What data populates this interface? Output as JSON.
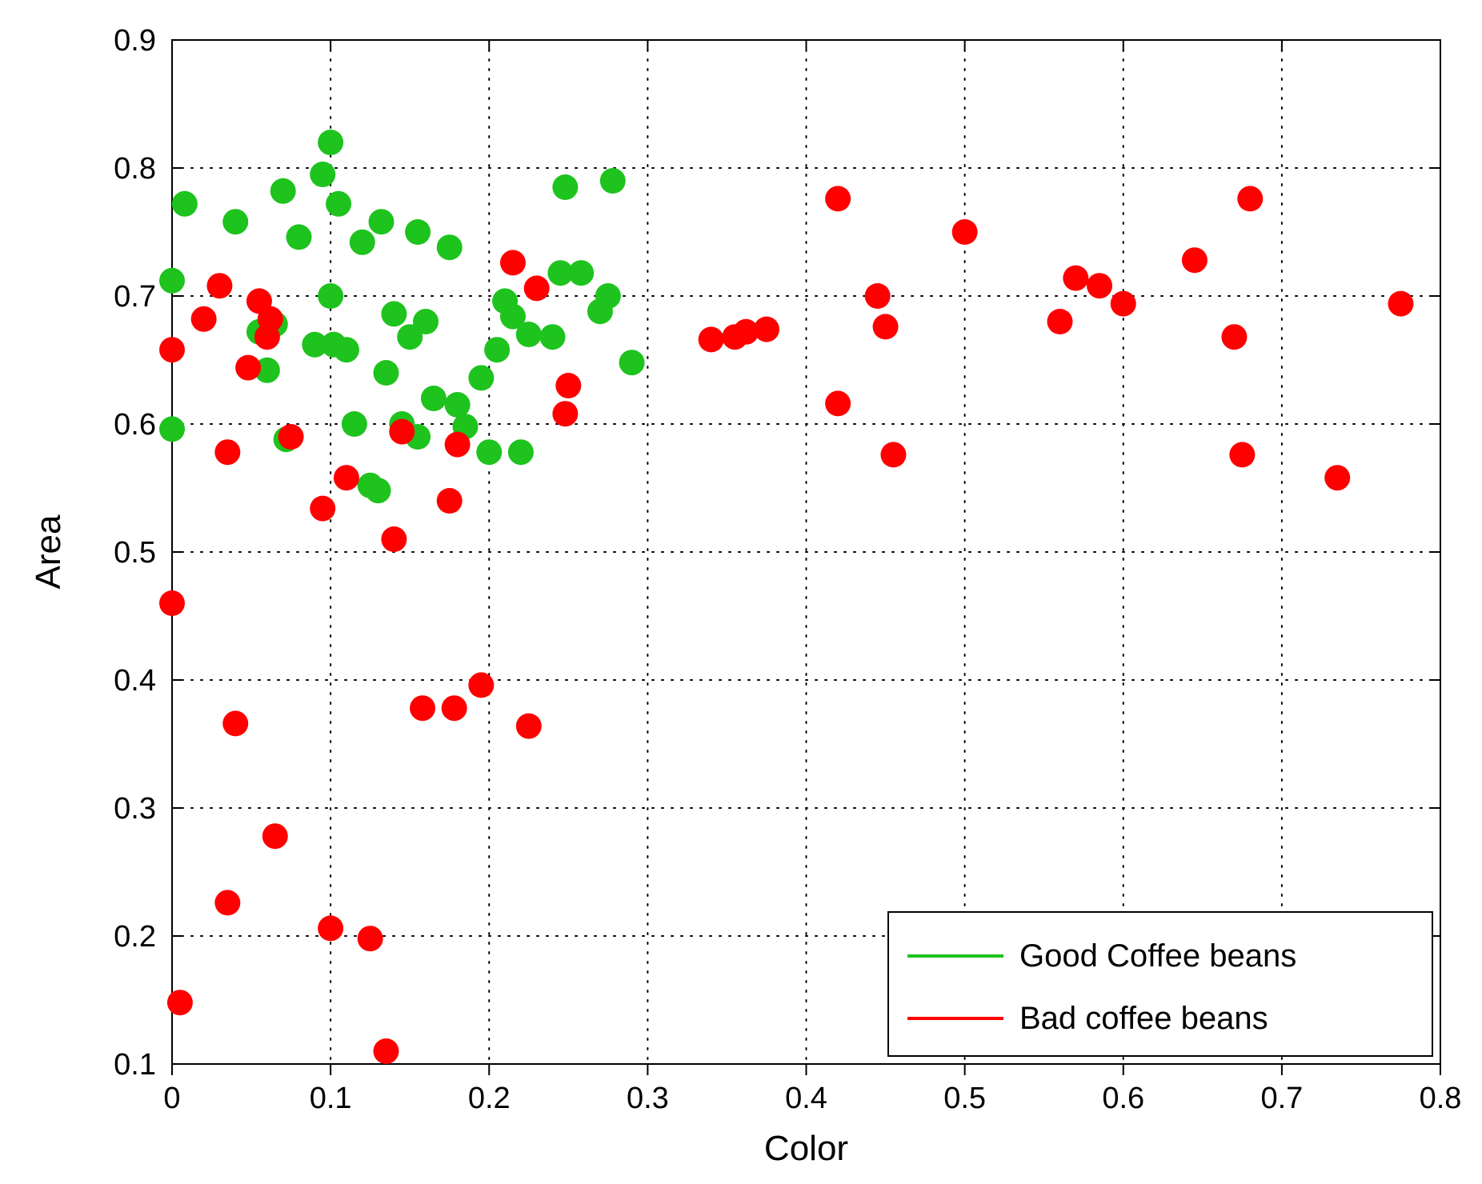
{
  "chart": {
    "type": "scatter",
    "background_color": "#ffffff",
    "plot_border_color": "#000000",
    "grid_color": "#000000",
    "grid_dash": "2 10",
    "marker_radius": 16,
    "x": {
      "label": "Color",
      "min": 0.0,
      "max": 0.8,
      "ticks": [
        0,
        0.1,
        0.2,
        0.3,
        0.4,
        0.5,
        0.6,
        0.7,
        0.8
      ]
    },
    "y": {
      "label": "Area",
      "min": 0.1,
      "max": 0.9,
      "ticks": [
        0.1,
        0.2,
        0.3,
        0.4,
        0.5,
        0.6,
        0.7,
        0.8,
        0.9
      ]
    },
    "series": [
      {
        "name": "Good Coffee beans",
        "color": "#1ec31e",
        "points": [
          [
            0.0,
            0.712
          ],
          [
            0.0,
            0.596
          ],
          [
            0.008,
            0.772
          ],
          [
            0.04,
            0.758
          ],
          [
            0.055,
            0.672
          ],
          [
            0.06,
            0.642
          ],
          [
            0.065,
            0.678
          ],
          [
            0.07,
            0.782
          ],
          [
            0.072,
            0.588
          ],
          [
            0.08,
            0.746
          ],
          [
            0.09,
            0.662
          ],
          [
            0.095,
            0.795
          ],
          [
            0.1,
            0.82
          ],
          [
            0.1,
            0.7
          ],
          [
            0.102,
            0.662
          ],
          [
            0.105,
            0.772
          ],
          [
            0.11,
            0.658
          ],
          [
            0.115,
            0.6
          ],
          [
            0.12,
            0.742
          ],
          [
            0.125,
            0.552
          ],
          [
            0.13,
            0.548
          ],
          [
            0.132,
            0.758
          ],
          [
            0.135,
            0.64
          ],
          [
            0.14,
            0.686
          ],
          [
            0.145,
            0.6
          ],
          [
            0.15,
            0.668
          ],
          [
            0.155,
            0.59
          ],
          [
            0.155,
            0.75
          ],
          [
            0.16,
            0.68
          ],
          [
            0.165,
            0.62
          ],
          [
            0.175,
            0.738
          ],
          [
            0.18,
            0.615
          ],
          [
            0.185,
            0.598
          ],
          [
            0.195,
            0.636
          ],
          [
            0.2,
            0.578
          ],
          [
            0.205,
            0.658
          ],
          [
            0.21,
            0.696
          ],
          [
            0.215,
            0.684
          ],
          [
            0.22,
            0.578
          ],
          [
            0.225,
            0.67
          ],
          [
            0.24,
            0.668
          ],
          [
            0.245,
            0.718
          ],
          [
            0.248,
            0.785
          ],
          [
            0.258,
            0.718
          ],
          [
            0.27,
            0.688
          ],
          [
            0.275,
            0.7
          ],
          [
            0.278,
            0.79
          ],
          [
            0.29,
            0.648
          ]
        ]
      },
      {
        "name": "Bad coffee beans",
        "color": "#ff0000",
        "points": [
          [
            0.0,
            0.658
          ],
          [
            0.0,
            0.46
          ],
          [
            0.005,
            0.148
          ],
          [
            0.02,
            0.682
          ],
          [
            0.03,
            0.708
          ],
          [
            0.035,
            0.578
          ],
          [
            0.035,
            0.226
          ],
          [
            0.04,
            0.366
          ],
          [
            0.048,
            0.644
          ],
          [
            0.055,
            0.696
          ],
          [
            0.06,
            0.668
          ],
          [
            0.062,
            0.682
          ],
          [
            0.065,
            0.278
          ],
          [
            0.075,
            0.59
          ],
          [
            0.095,
            0.534
          ],
          [
            0.1,
            0.206
          ],
          [
            0.11,
            0.558
          ],
          [
            0.125,
            0.198
          ],
          [
            0.135,
            0.11
          ],
          [
            0.14,
            0.51
          ],
          [
            0.145,
            0.594
          ],
          [
            0.158,
            0.378
          ],
          [
            0.175,
            0.54
          ],
          [
            0.178,
            0.378
          ],
          [
            0.18,
            0.584
          ],
          [
            0.195,
            0.396
          ],
          [
            0.215,
            0.726
          ],
          [
            0.225,
            0.364
          ],
          [
            0.23,
            0.706
          ],
          [
            0.248,
            0.608
          ],
          [
            0.25,
            0.63
          ],
          [
            0.34,
            0.666
          ],
          [
            0.355,
            0.668
          ],
          [
            0.362,
            0.672
          ],
          [
            0.375,
            0.674
          ],
          [
            0.42,
            0.776
          ],
          [
            0.42,
            0.616
          ],
          [
            0.445,
            0.7
          ],
          [
            0.45,
            0.676
          ],
          [
            0.455,
            0.576
          ],
          [
            0.5,
            0.75
          ],
          [
            0.56,
            0.68
          ],
          [
            0.57,
            0.714
          ],
          [
            0.585,
            0.708
          ],
          [
            0.6,
            0.694
          ],
          [
            0.645,
            0.728
          ],
          [
            0.67,
            0.668
          ],
          [
            0.675,
            0.576
          ],
          [
            0.68,
            0.776
          ],
          [
            0.735,
            0.558
          ],
          [
            0.775,
            0.694
          ]
        ]
      }
    ],
    "legend": {
      "position": "bottom-right",
      "border_color": "#000000",
      "background": "#ffffff",
      "line_length": 120
    },
    "label_fontsize": 44,
    "tick_fontsize": 38,
    "legend_fontsize": 40
  }
}
